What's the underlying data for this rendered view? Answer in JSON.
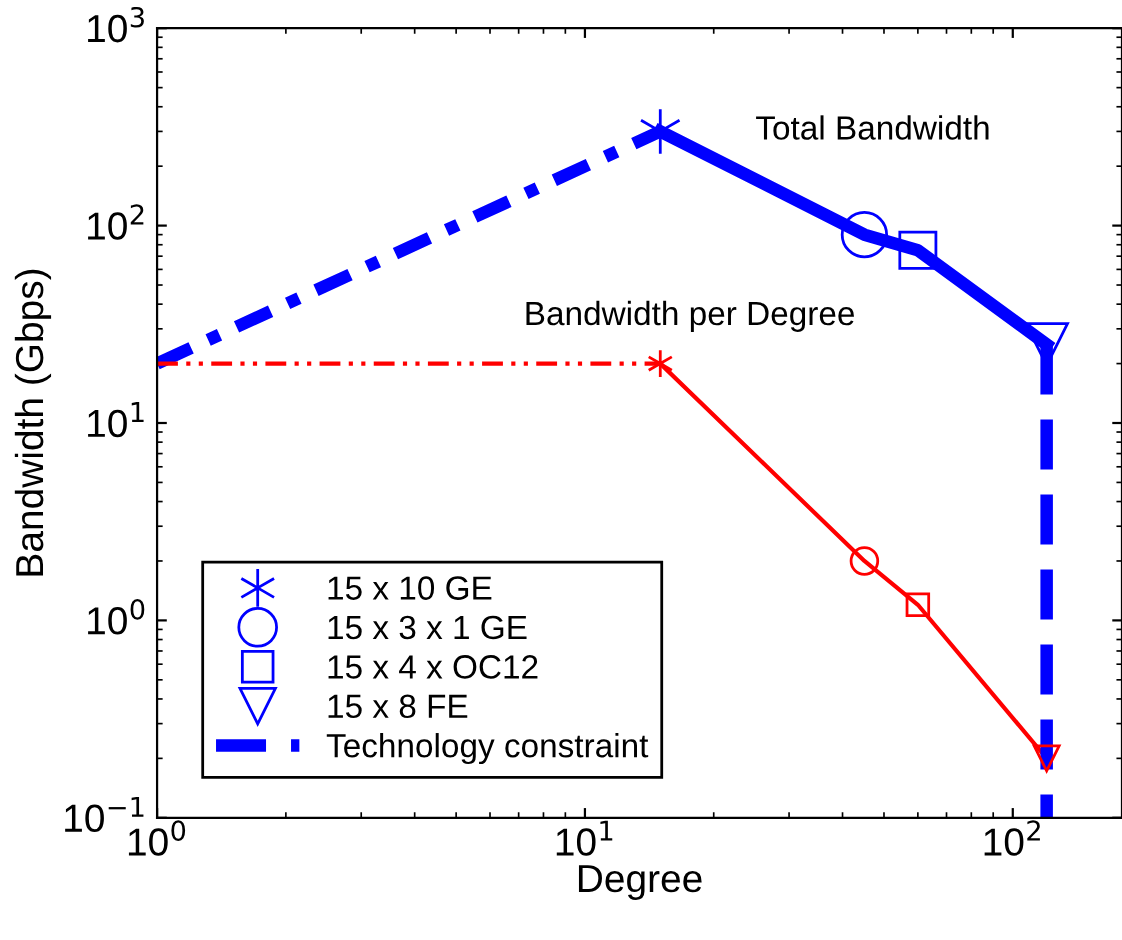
{
  "chart_data": {
    "type": "line",
    "xlabel": "Degree",
    "ylabel": "Bandwidth (Gbps)",
    "log": "xy",
    "xlim": [
      1,
      180
    ],
    "ylim": [
      0.1,
      1000
    ],
    "xticks": [
      {
        "value": 1,
        "label": "10$^{0}$"
      },
      {
        "value": 10,
        "label": "10$^{1}$"
      },
      {
        "value": 100,
        "label": "10$^{2}$"
      }
    ],
    "yticks": [
      {
        "value": 0.1,
        "label": "10$^{−1}$"
      },
      {
        "value": 1,
        "label": "10$^{0}$"
      },
      {
        "value": 10,
        "label": "10$^{1}$"
      },
      {
        "value": 100,
        "label": "10$^{2}$"
      },
      {
        "value": 1000,
        "label": "10$^{3}$"
      }
    ],
    "grid": false,
    "legend": "bottom left",
    "series": [
      {
        "color": "#0000ff",
        "x": [
          1,
          15
        ],
        "values": [
          20,
          300
        ],
        "line_style": "dashdot"
      },
      {
        "color": "#0000ff",
        "x": [
          15,
          45,
          60,
          120
        ],
        "values": [
          300,
          90,
          75,
          25
        ],
        "line_style": "solid"
      },
      {
        "color": "#ff0000",
        "x": [
          1,
          15
        ],
        "values": [
          20,
          20
        ],
        "line_style": "dashdotdot"
      },
      {
        "color": "#ff0000",
        "x": [
          15,
          45,
          60,
          120
        ],
        "values": [
          20,
          2,
          1.2,
          0.2
        ],
        "line_style": "solid"
      },
      {
        "name": "Technology constraint",
        "color": "#0000ff",
        "x": [
          120,
          120
        ],
        "values": [
          25,
          0.1
        ],
        "line_style": "dashed"
      },
      {
        "type": "scatter",
        "name": "15 x 10 GE",
        "color": "#0000ff",
        "colors": [
          "#0000ff",
          "#ff0000"
        ],
        "x": [
          15,
          15
        ],
        "values": [
          300,
          20
        ],
        "marker": "cross"
      },
      {
        "type": "scatter",
        "name": "15 x 3 x 1 GE",
        "color": "#0000ff",
        "colors": [
          "#0000ff",
          "#ff0000"
        ],
        "x": [
          45,
          45
        ],
        "values": [
          90,
          2
        ],
        "marker": "circle"
      },
      {
        "type": "scatter",
        "name": "15 x 4 x OC12",
        "color": "#0000ff",
        "colors": [
          "#0000ff",
          "#ff0000"
        ],
        "x": [
          60,
          60
        ],
        "values": [
          75,
          1.2
        ],
        "marker": "square"
      },
      {
        "type": "scatter",
        "name": "15 x 8 FE",
        "color": "#0000ff",
        "colors": [
          "#0000ff",
          "#ff0000"
        ],
        "x": [
          120,
          120
        ],
        "values": [
          25,
          0.2
        ],
        "marker": "triangle"
      }
    ],
    "annotations": [
      "Total Bandwidth",
      "Bandwidth per Degree"
    ]
  }
}
